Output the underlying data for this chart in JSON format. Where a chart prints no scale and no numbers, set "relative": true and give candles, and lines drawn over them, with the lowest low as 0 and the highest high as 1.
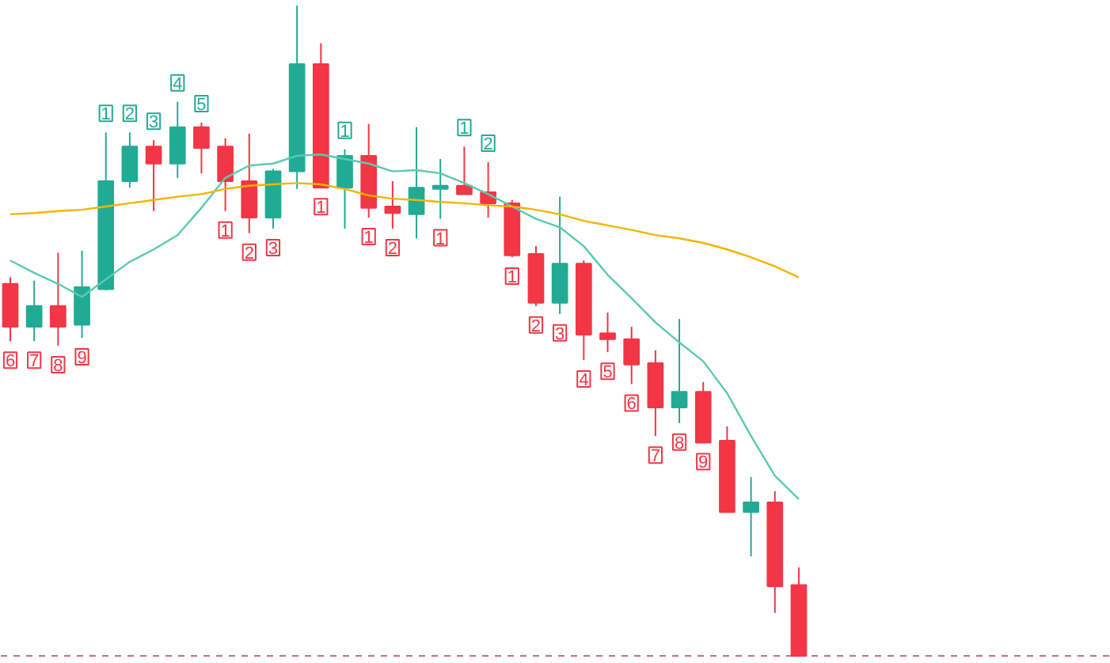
{
  "chart_data": {
    "type": "candlestick",
    "relative": true,
    "categories": [
      null,
      null,
      null,
      null,
      null,
      null,
      null,
      null,
      null,
      null,
      null,
      null,
      null,
      null,
      null,
      null,
      null,
      null,
      null,
      null,
      null,
      null,
      null,
      null,
      null,
      null,
      null,
      null,
      null,
      null,
      null,
      null,
      null,
      null
    ],
    "ohlc": [
      [
        0.572,
        0.582,
        0.484,
        0.506
      ],
      [
        0.506,
        0.577,
        0.484,
        0.538
      ],
      [
        0.538,
        0.62,
        0.477,
        0.506
      ],
      [
        0.509,
        0.623,
        0.489,
        0.567
      ],
      [
        0.564,
        0.805,
        0.562,
        0.73
      ],
      [
        0.73,
        0.805,
        0.72,
        0.783
      ],
      [
        0.783,
        0.793,
        0.684,
        0.757
      ],
      [
        0.757,
        0.852,
        0.735,
        0.813
      ],
      [
        0.813,
        0.82,
        0.742,
        0.781
      ],
      [
        0.783,
        0.796,
        0.684,
        0.73
      ],
      [
        0.73,
        0.803,
        0.65,
        0.674
      ],
      [
        0.674,
        0.749,
        0.657,
        0.745
      ],
      [
        0.745,
        1.0,
        0.718,
        0.91
      ],
      [
        0.91,
        0.942,
        0.72,
        0.72
      ],
      [
        0.72,
        0.779,
        0.657,
        0.769
      ],
      [
        0.769,
        0.818,
        0.674,
        0.689
      ],
      [
        0.691,
        0.73,
        0.657,
        0.681
      ],
      [
        0.679,
        0.813,
        0.642,
        0.72
      ],
      [
        0.718,
        0.764,
        0.672,
        0.723
      ],
      [
        0.723,
        0.783,
        0.71,
        0.71
      ],
      [
        0.713,
        0.759,
        0.674,
        0.696
      ],
      [
        0.696,
        0.701,
        0.613,
        0.616
      ],
      [
        0.618,
        0.63,
        0.538,
        0.543
      ],
      [
        0.543,
        0.706,
        0.526,
        0.603
      ],
      [
        0.603,
        0.608,
        0.455,
        0.494
      ],
      [
        0.496,
        0.528,
        0.467,
        0.487
      ],
      [
        0.487,
        0.506,
        0.418,
        0.448
      ],
      [
        0.45,
        0.47,
        0.338,
        0.382
      ],
      [
        0.382,
        0.518,
        0.358,
        0.406
      ],
      [
        0.406,
        0.421,
        0.328,
        0.328
      ],
      [
        0.331,
        0.353,
        0.221,
        0.221
      ],
      [
        0.221,
        0.275,
        0.153,
        0.236
      ],
      [
        0.236,
        0.253,
        0.066,
        0.107
      ],
      [
        0.109,
        0.136,
        0,
        0
      ]
    ],
    "colors": [
      "#f23645",
      "#22ab94",
      "#f23645",
      "#22ab94",
      "#22ab94",
      "#22ab94",
      "#f23645",
      "#22ab94",
      "#f23645",
      "#f23645",
      "#f23645",
      "#22ab94",
      "#22ab94",
      "#f23645",
      "#22ab94",
      "#f23645",
      "#f23645",
      "#22ab94",
      "#22ab94",
      "#f23645",
      "#f23645",
      "#f23645",
      "#f23645",
      "#22ab94",
      "#f23645",
      "#f23645",
      "#f23645",
      "#f23645",
      "#22ab94",
      "#f23645",
      "#f23645",
      "#22ab94",
      "#f23645",
      "#f23645"
    ],
    "value_labels": [
      "6",
      "7",
      "8",
      "9",
      "1",
      "2",
      "3",
      "4",
      "5",
      "1",
      "2",
      "3",
      null,
      "1",
      "1",
      "1",
      "2",
      null,
      "1",
      "1",
      "2",
      "1",
      "2",
      "3",
      "4",
      "5",
      "6",
      "7",
      "8",
      "9",
      null,
      null,
      null,
      null
    ],
    "series": [
      {
        "type": "line",
        "color": "#5cc9b2",
        "values": [
          0.608,
          0.589,
          0.572,
          0.552,
          0.579,
          0.606,
          0.625,
          0.647,
          0.689,
          0.735,
          0.754,
          0.757,
          0.769,
          0.771,
          0.764,
          0.757,
          0.745,
          0.747,
          0.742,
          0.727,
          0.71,
          0.691,
          0.672,
          0.659,
          0.63,
          0.586,
          0.55,
          0.513,
          0.482,
          0.453,
          0.404,
          0.338,
          0.277,
          0.241
        ]
      },
      {
        "type": "line",
        "color": "#f5b400",
        "values": [
          0.679,
          0.681,
          0.684,
          0.686,
          0.691,
          0.696,
          0.701,
          0.706,
          0.71,
          0.718,
          0.723,
          0.725,
          0.727,
          0.725,
          0.718,
          0.708,
          0.703,
          0.701,
          0.698,
          0.696,
          0.693,
          0.691,
          0.686,
          0.679,
          0.669,
          0.662,
          0.655,
          0.647,
          0.642,
          0.635,
          0.625,
          0.613,
          0.599,
          0.582
        ]
      }
    ],
    "ref_lines": [
      {
        "axis": "y",
        "value": 0,
        "color": "#c9689a",
        "line_style": "dashed"
      }
    ]
  }
}
